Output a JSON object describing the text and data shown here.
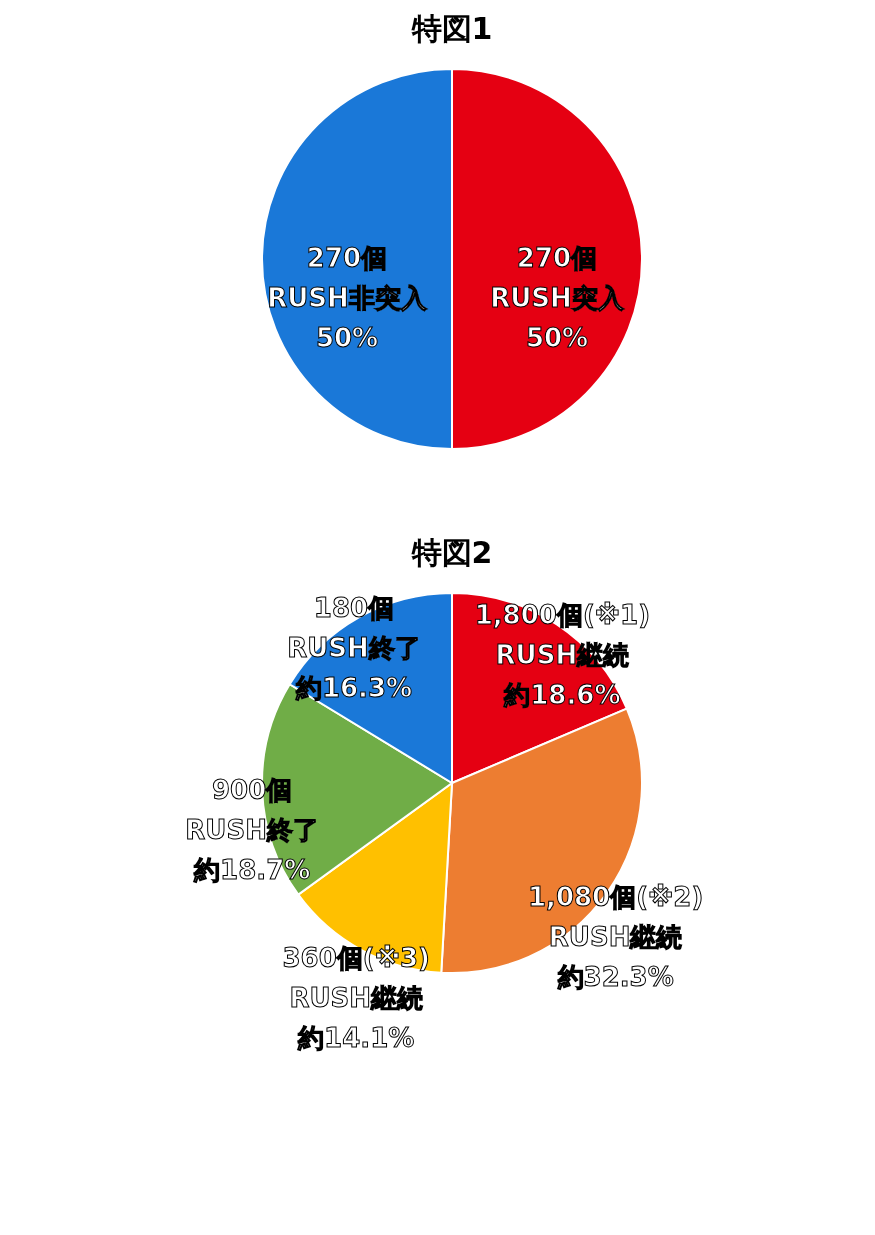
{
  "chart_data": [
    {
      "type": "pie",
      "title": "特図1",
      "categories": [
        "270個\nRUSH突入",
        "270個\nRUSH非突入"
      ],
      "values": [
        50,
        50
      ],
      "colors": [
        "#e50012",
        "#1a78d8"
      ],
      "value_labels": [
        "50%",
        "50%"
      ]
    },
    {
      "type": "pie",
      "title": "特図2",
      "categories": [
        "1,800個(※1)\nRUSH継続",
        "1,080個(※2)\nRUSH継続",
        "360個(※3)\nRUSH継続",
        "900個\nRUSH終了",
        "180個\nRUSH終了"
      ],
      "values": [
        18.6,
        32.3,
        14.1,
        18.7,
        16.3
      ],
      "colors": [
        "#e50012",
        "#ed7d31",
        "#ffc000",
        "#70ad47",
        "#1a78d8"
      ],
      "value_labels": [
        "約18.6%",
        "約32.3%",
        "約14.1%",
        "約18.7%",
        "約16.3%"
      ]
    }
  ]
}
